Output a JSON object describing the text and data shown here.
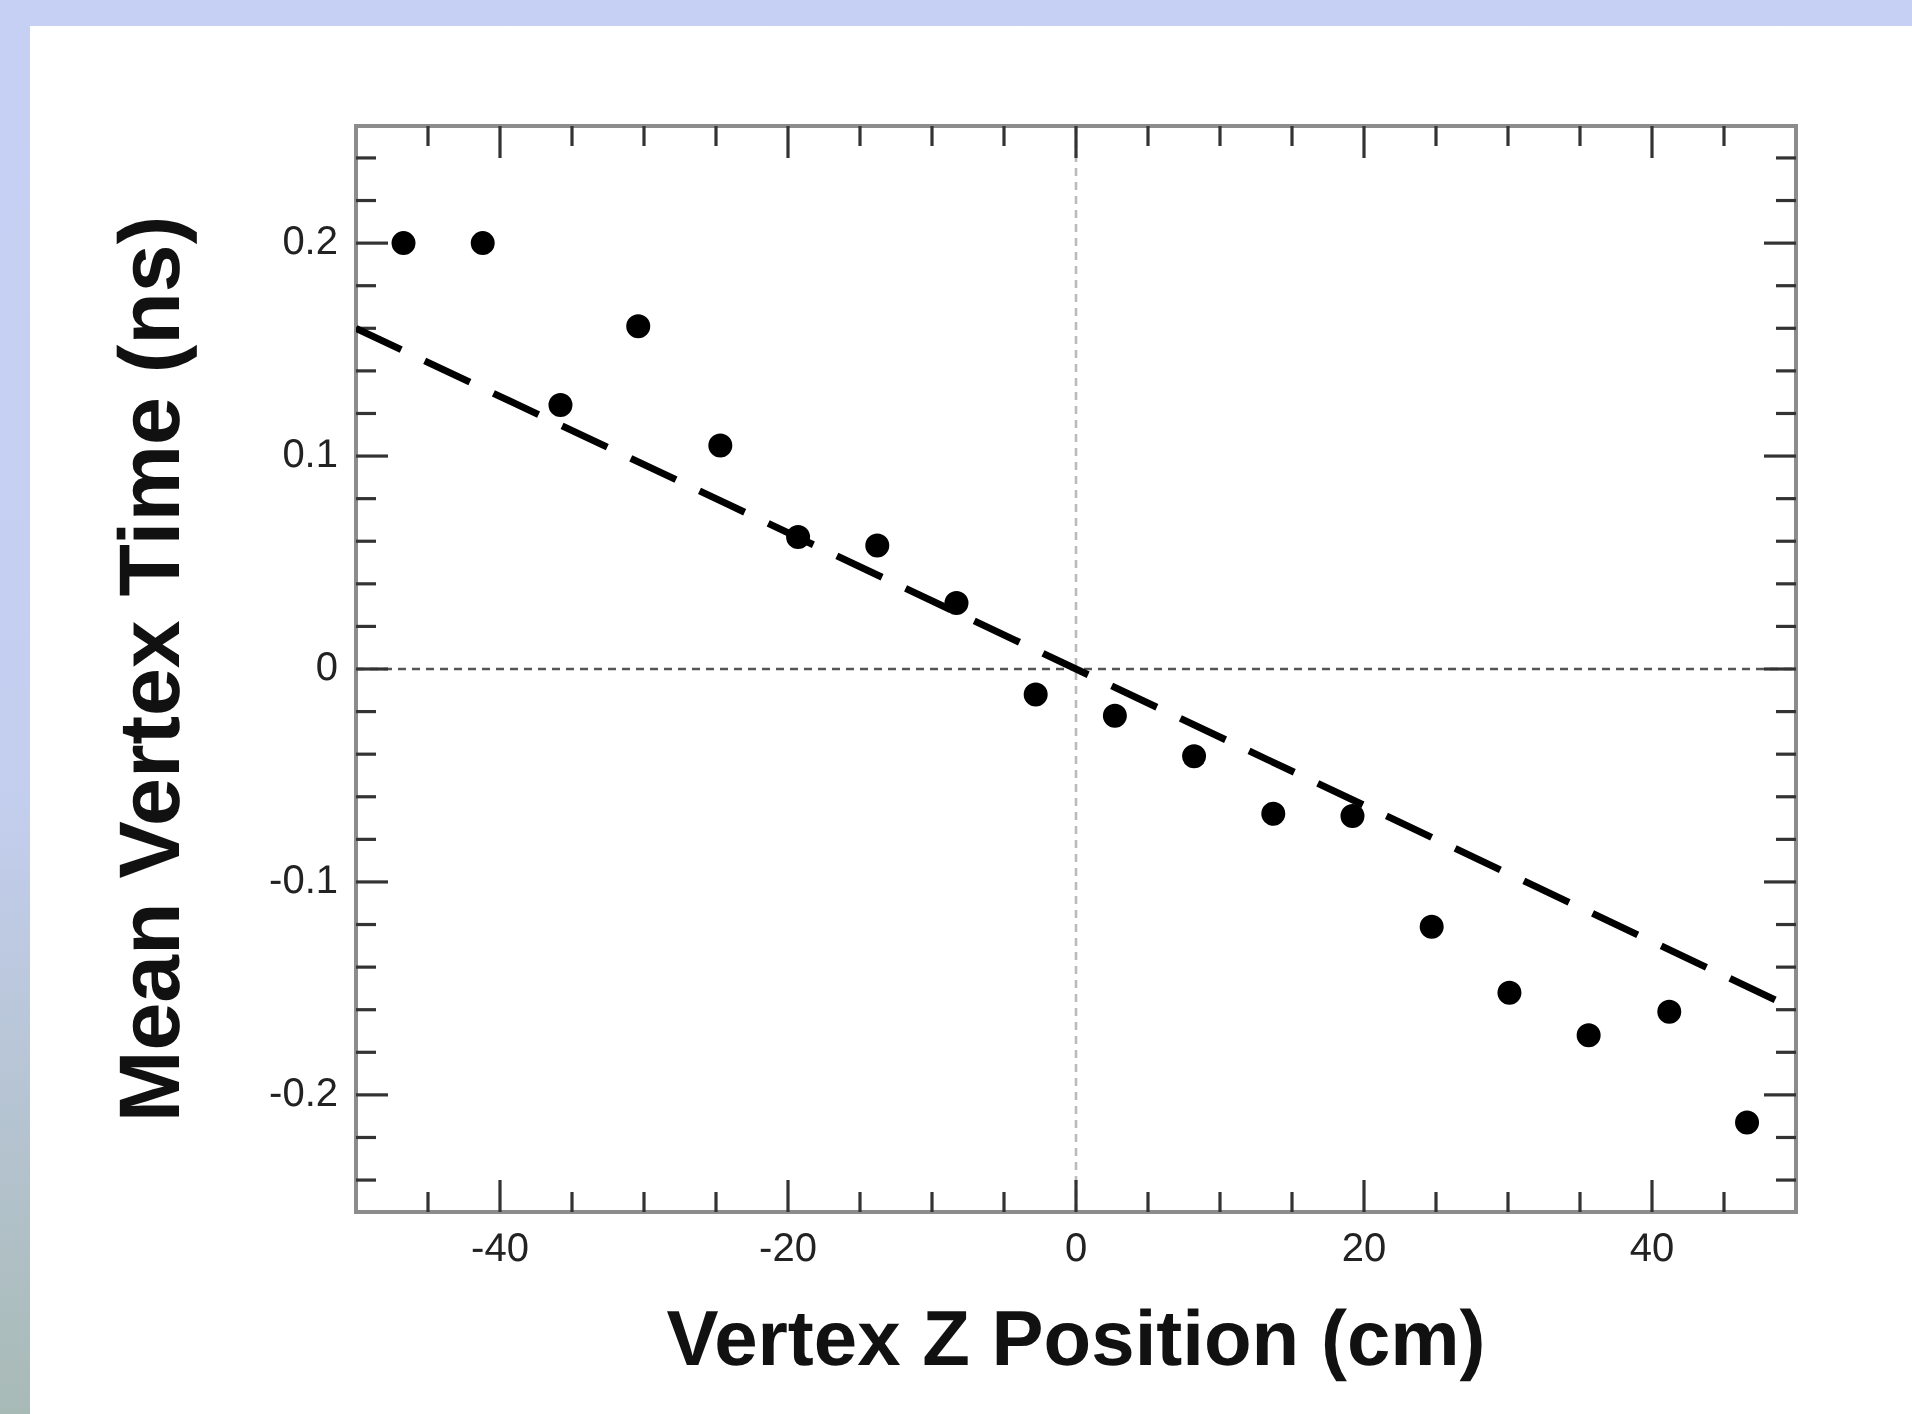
{
  "chart_data": {
    "type": "scatter",
    "xlabel": "Vertex Z Position (cm)",
    "ylabel": "Mean Vertex Time (ns)",
    "x": [
      -46.7,
      -41.2,
      -35.8,
      -30.4,
      -24.7,
      -19.3,
      -13.8,
      -8.3,
      -2.8,
      2.7,
      8.2,
      13.7,
      19.2,
      24.7,
      30.1,
      35.6,
      41.2,
      46.6
    ],
    "series": [
      {
        "type": "scatter",
        "color": "#000000",
        "values": [
          0.2,
          0.2,
          0.124,
          0.161,
          0.105,
          0.062,
          0.058,
          0.031,
          -0.012,
          -0.022,
          -0.041,
          -0.068,
          -0.069,
          -0.121,
          -0.152,
          -0.172,
          -0.161,
          -0.213
        ]
      },
      {
        "type": "line",
        "color": "#000000",
        "x": [
          -50,
          50
        ],
        "values": [
          0.16,
          -0.16
        ],
        "line_style": "dashed",
        "marker": "none"
      }
    ],
    "xlim": [
      -50,
      50
    ],
    "ylim": [
      -0.255,
      0.255
    ],
    "xticks": [
      {
        "value": -45,
        "label": null
      },
      -40,
      {
        "value": -35,
        "label": null
      },
      {
        "value": -30,
        "label": null
      },
      {
        "value": -25,
        "label": null
      },
      -20,
      {
        "value": -15,
        "label": null
      },
      {
        "value": -10,
        "label": null
      },
      {
        "value": -5,
        "label": null
      },
      0,
      {
        "value": 5,
        "label": null
      },
      {
        "value": 10,
        "label": null
      },
      {
        "value": 15,
        "label": null
      },
      20,
      {
        "value": 25,
        "label": null
      },
      {
        "value": 30,
        "label": null
      },
      {
        "value": 35,
        "label": null
      },
      40,
      {
        "value": 45,
        "label": null
      }
    ],
    "yticks": [
      {
        "value": -0.24,
        "label": null
      },
      {
        "value": -0.22,
        "label": null
      },
      -0.2,
      {
        "value": -0.18,
        "label": null
      },
      {
        "value": -0.16,
        "label": null
      },
      {
        "value": -0.14,
        "label": null
      },
      {
        "value": -0.12,
        "label": null
      },
      -0.1,
      {
        "value": -0.08,
        "label": null
      },
      {
        "value": -0.06,
        "label": null
      },
      {
        "value": -0.04,
        "label": null
      },
      {
        "value": -0.02,
        "label": null
      },
      0,
      {
        "value": 0.02,
        "label": null
      },
      {
        "value": 0.04,
        "label": null
      },
      {
        "value": 0.06,
        "label": null
      },
      {
        "value": 0.08,
        "label": null
      },
      0.1,
      {
        "value": 0.12,
        "label": null
      },
      {
        "value": 0.14,
        "label": null
      },
      {
        "value": 0.16,
        "label": null
      },
      {
        "value": 0.18,
        "label": null
      },
      0.2,
      {
        "value": 0.22,
        "label": null
      },
      {
        "value": 0.24,
        "label": null
      }
    ],
    "ref_lines": [
      {
        "axis": "y",
        "value": 0,
        "color": "#555555",
        "line_style": "dotted"
      },
      {
        "axis": "x",
        "value": 0,
        "color": "#bbbbbb",
        "line_style": "dotted"
      }
    ],
    "grid": false,
    "legend": false,
    "marker": "circle"
  }
}
